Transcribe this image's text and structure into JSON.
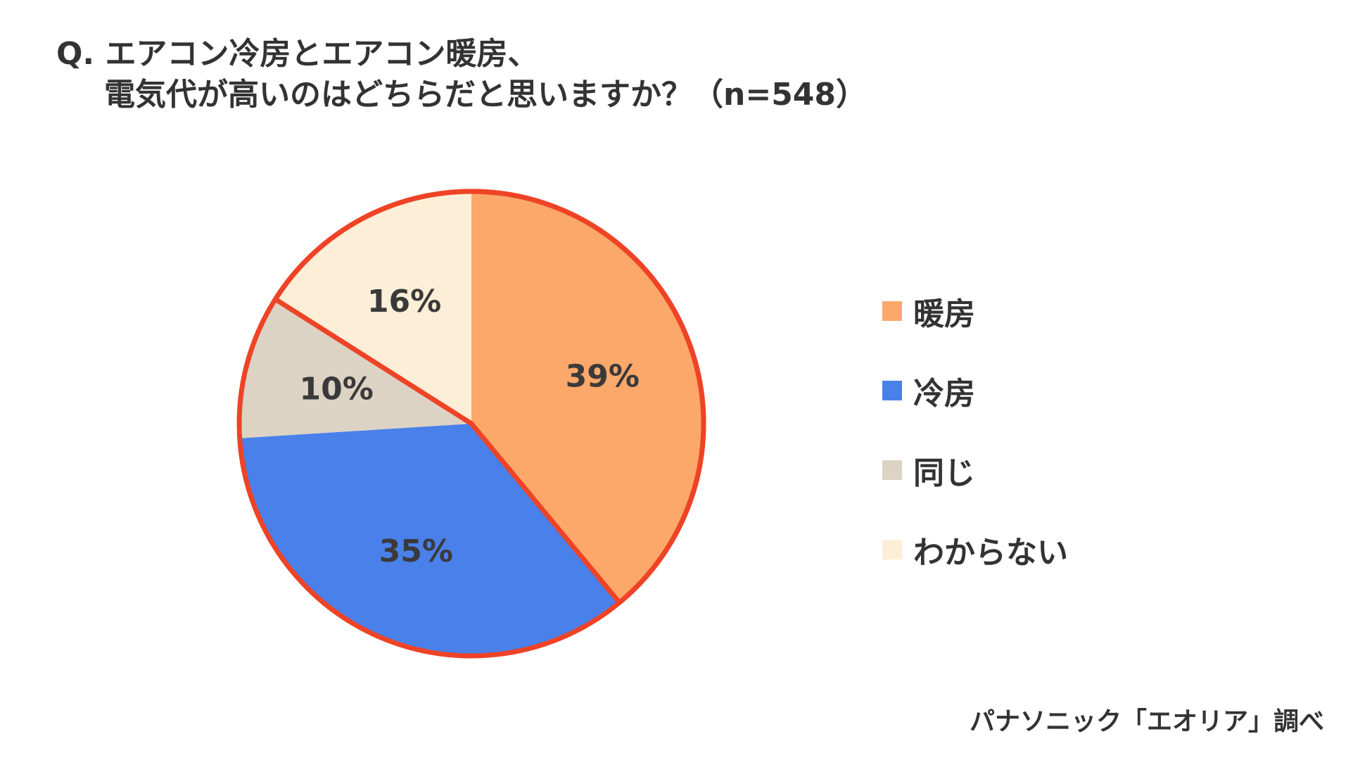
{
  "title": {
    "line1": "Q. エアコン冷房とエアコン暖房、",
    "line2": "電気代が高いのはどちらだと思いますか？（n=548）"
  },
  "chart_data": {
    "type": "pie",
    "categories": [
      "暖房",
      "冷房",
      "同じ",
      "わからない"
    ],
    "values": [
      39,
      35,
      10,
      16
    ],
    "value_labels": [
      "39%",
      "35%",
      "10%",
      "16%"
    ],
    "colors": [
      "#FCA86A",
      "#4A80EA",
      "#DCD3C5",
      "#FCEED7"
    ],
    "highlight": {
      "categories": [
        "暖房",
        "わからない"
      ],
      "outline_color": "#EE4326"
    },
    "legend_position": "right"
  },
  "source": "パナソニック「エオリア」調べ"
}
